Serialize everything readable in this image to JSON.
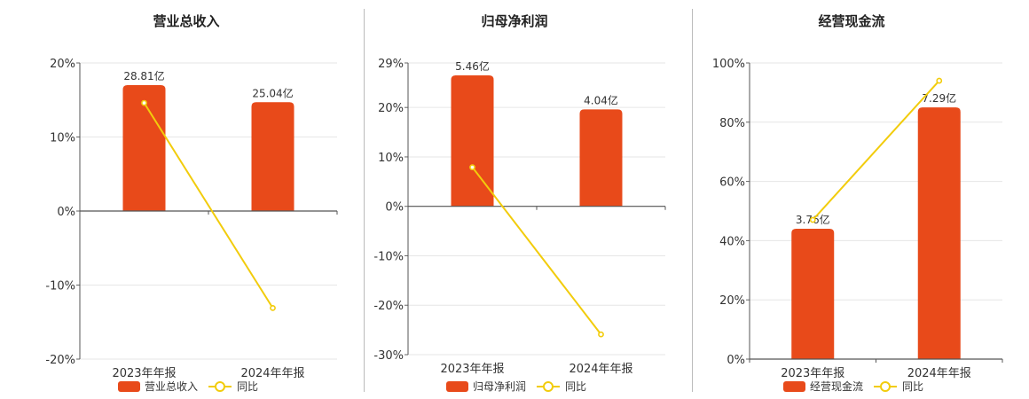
{
  "chart_data": [
    {
      "type": "bar",
      "title": "营业总收入",
      "categories": [
        "2023年年报",
        "2024年年报"
      ],
      "series": [
        {
          "name": "营业总收入",
          "kind": "bar",
          "values": [
            17.0,
            14.7
          ],
          "labels": [
            "28.81亿",
            "25.04亿"
          ],
          "color": "#e84a1a"
        },
        {
          "name": "同比",
          "kind": "line",
          "values": [
            14.6,
            -13.1
          ],
          "color": "#f2cc0c"
        }
      ],
      "yticks": [
        20,
        10,
        0,
        -10,
        -20
      ],
      "ytick_labels": [
        "20%",
        "10%",
        "0%",
        "-10%",
        "-20%"
      ],
      "ylim": [
        -20,
        20
      ],
      "grid": true,
      "legend": "bottom"
    },
    {
      "type": "bar",
      "title": "归母净利润",
      "categories": [
        "2023年年报",
        "2024年年报"
      ],
      "series": [
        {
          "name": "归母净利润",
          "kind": "bar",
          "values": [
            26.5,
            19.6
          ],
          "labels": [
            "5.46亿",
            "4.04亿"
          ],
          "color": "#e84a1a"
        },
        {
          "name": "同比",
          "kind": "line",
          "values": [
            7.9,
            -25.9
          ],
          "color": "#f2cc0c"
        }
      ],
      "yticks": [
        29,
        20,
        10,
        0,
        -10,
        -20,
        -30
      ],
      "ytick_labels": [
        "29%",
        "20%",
        "10%",
        "0%",
        "-10%",
        "-20%",
        "-30%"
      ],
      "ylim": [
        -30,
        29
      ],
      "grid": true,
      "legend": "bottom"
    },
    {
      "type": "bar",
      "title": "经营现金流",
      "categories": [
        "2023年年报",
        "2024年年报"
      ],
      "series": [
        {
          "name": "经营现金流",
          "kind": "bar",
          "values": [
            44.0,
            85.0
          ],
          "labels": [
            "3.76亿",
            "7.29亿"
          ],
          "color": "#e84a1a"
        },
        {
          "name": "同比",
          "kind": "line",
          "values": [
            47.0,
            94.0
          ],
          "color": "#f2cc0c"
        }
      ],
      "yticks": [
        100,
        80,
        60,
        40,
        20,
        0
      ],
      "ytick_labels": [
        "100%",
        "80%",
        "60%",
        "40%",
        "20%",
        "0%"
      ],
      "ylim": [
        0,
        100
      ],
      "grid": true,
      "legend": "bottom"
    }
  ]
}
